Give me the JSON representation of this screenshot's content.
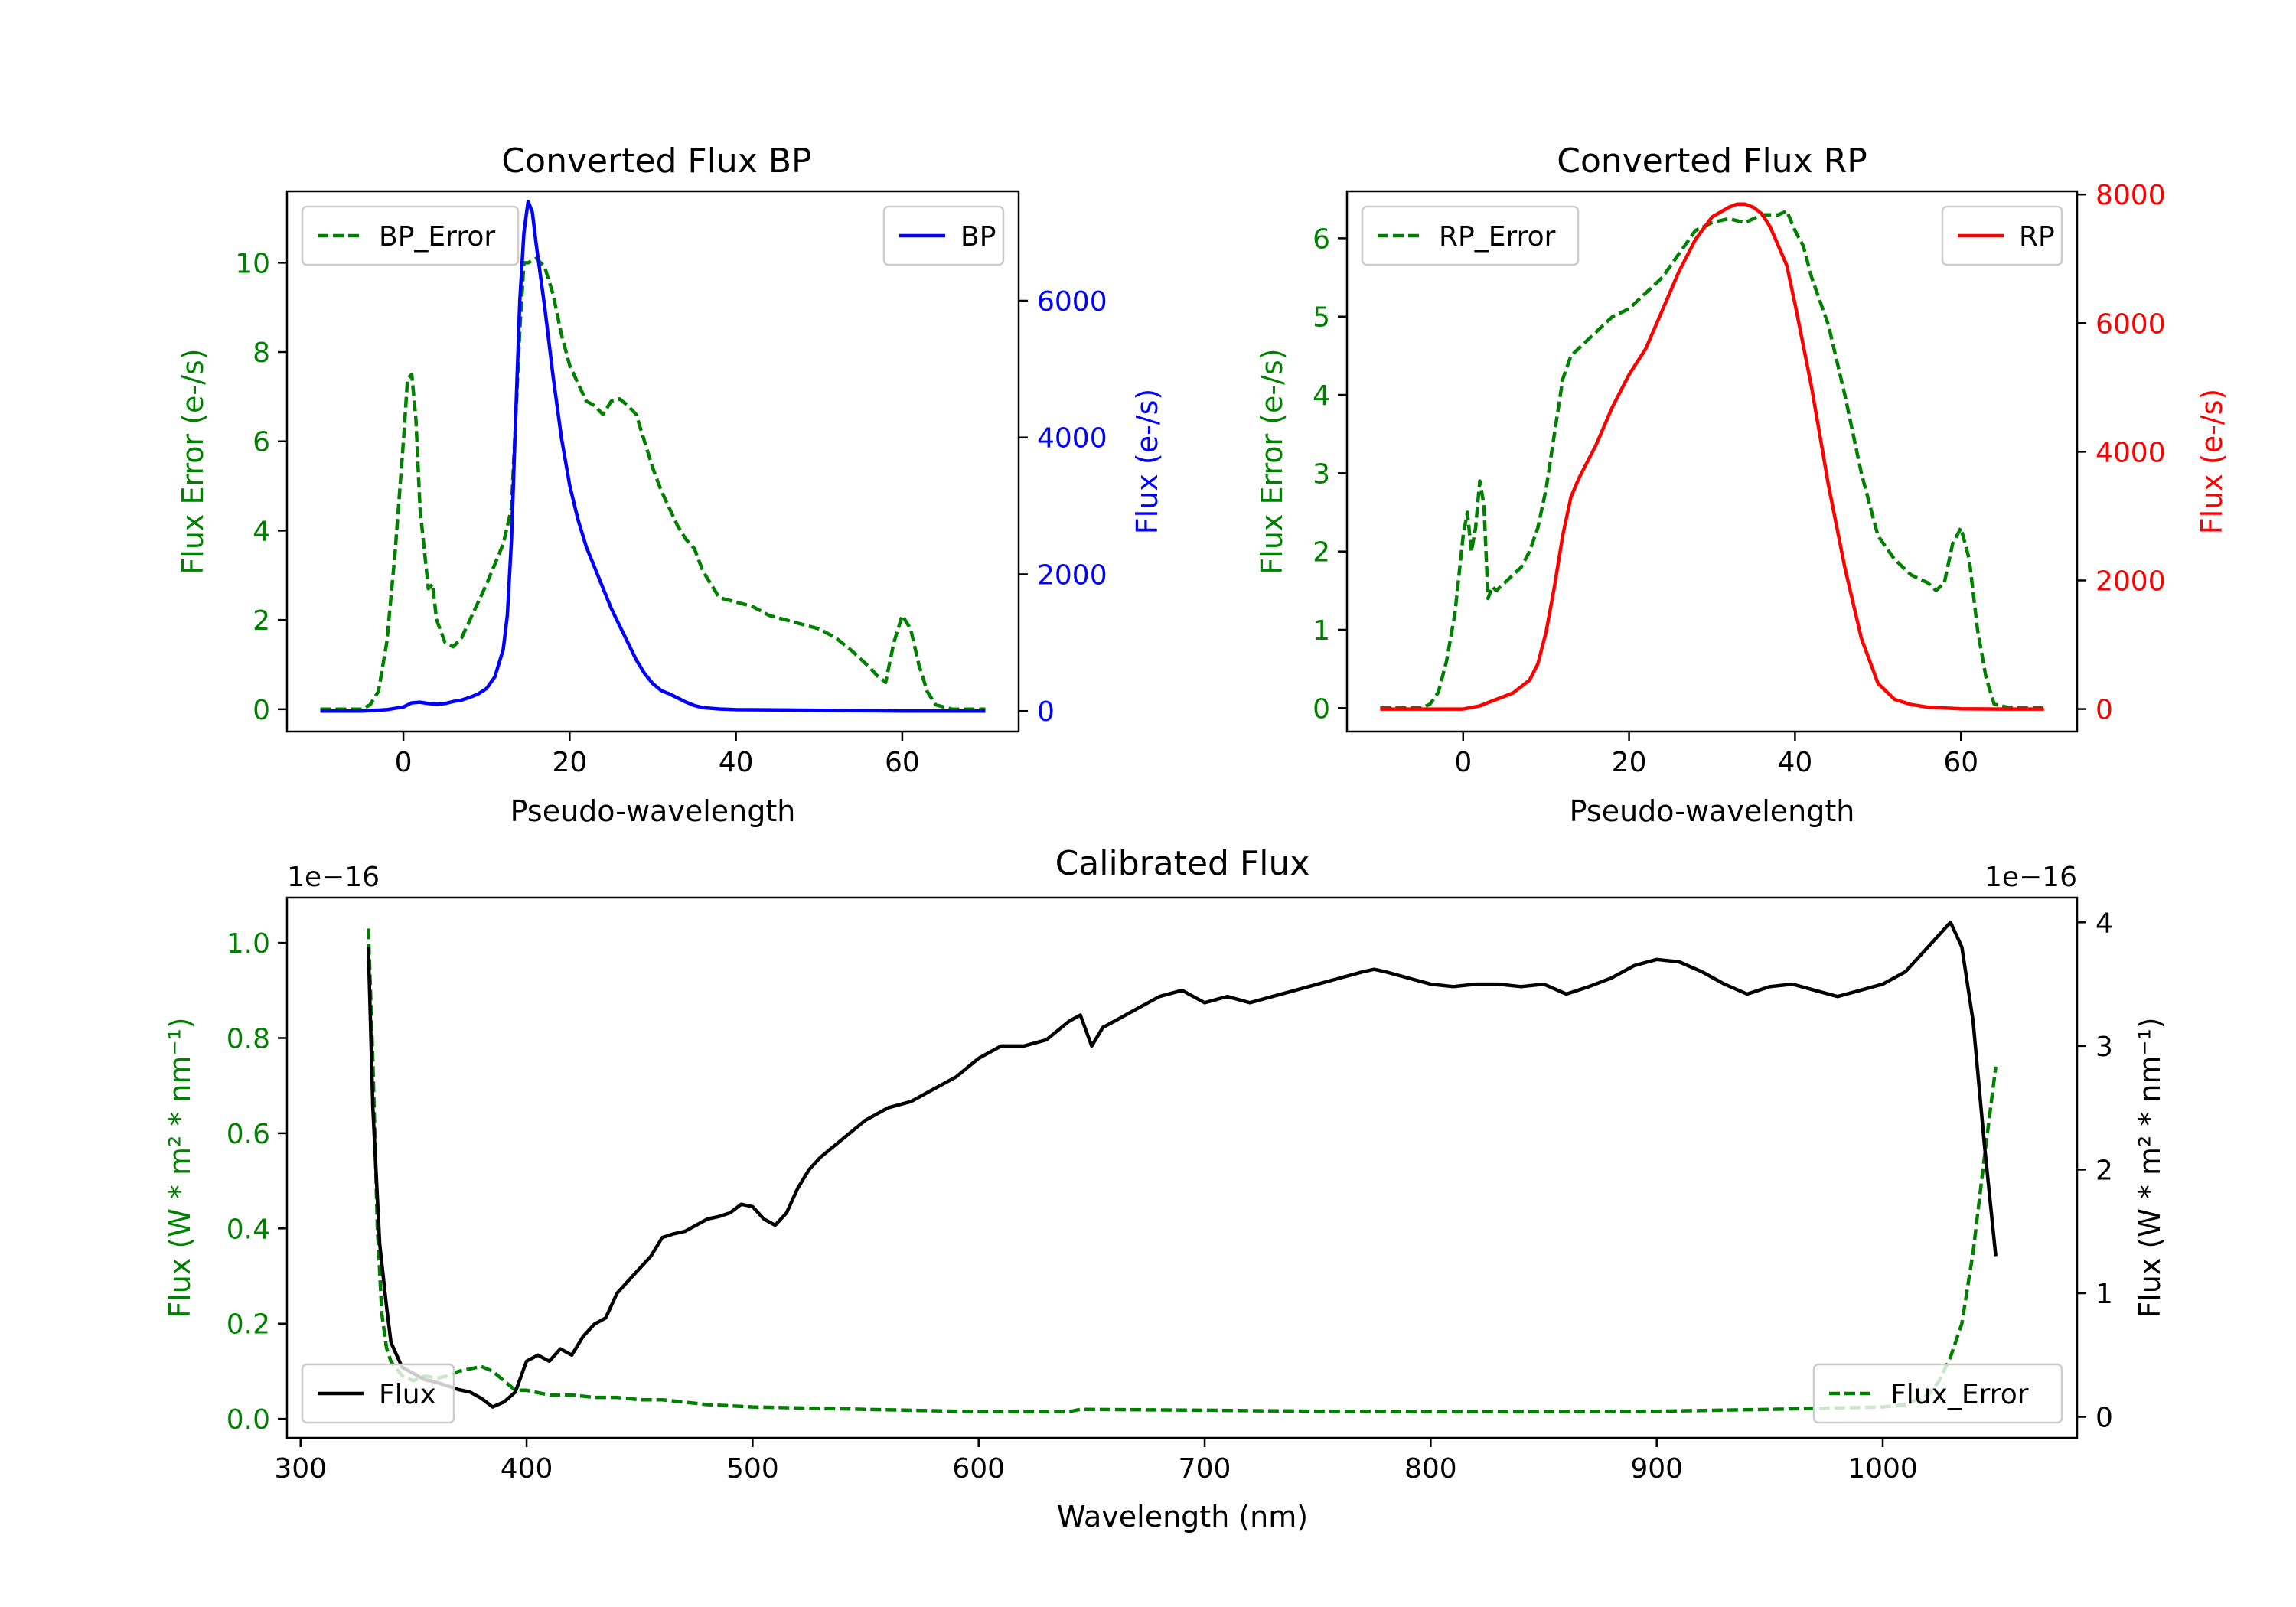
{
  "colors": {
    "green": "#008000",
    "blue": "#0000ff",
    "red": "#ff0000",
    "black": "#000000"
  },
  "chart_data": [
    {
      "id": "bp",
      "type": "line",
      "title": "Converted Flux BP",
      "xlabel": "Pseudo-wavelength",
      "ylabel_left": "Flux Error (e-/s)",
      "ylabel_right": "Flux (e-/s)",
      "xlim": [
        -14,
        74
      ],
      "ylim_left": [
        -0.5,
        11.6
      ],
      "ylim_right": [
        -300,
        7600
      ],
      "xticks": [
        0,
        20,
        40,
        60
      ],
      "yticks_left": [
        0,
        2,
        4,
        6,
        8,
        10
      ],
      "yticks_right": [
        0,
        2000,
        4000,
        6000
      ],
      "left_color": "#008000",
      "right_color": "#0000ff",
      "series": [
        {
          "name": "BP_Error",
          "axis": "left",
          "style": "dashed",
          "color": "#008000",
          "legend": "top-left",
          "x": [
            -10,
            -5,
            -4,
            -3,
            -2,
            -1,
            0,
            0.5,
            1,
            1.5,
            2,
            3,
            3.5,
            4,
            5,
            6,
            7,
            8,
            10,
            12,
            13,
            13.5,
            14,
            14.5,
            15,
            16,
            17,
            18,
            19,
            20,
            21,
            22,
            23,
            24,
            25,
            26,
            27,
            28,
            29,
            30,
            31,
            32,
            33,
            34,
            35,
            36,
            38,
            40,
            42,
            44,
            46,
            48,
            50,
            52,
            54,
            56,
            57,
            58,
            59,
            60,
            61,
            62,
            63,
            64,
            66,
            68,
            70
          ],
          "values": [
            0.0,
            0.0,
            0.1,
            0.4,
            1.5,
            3.5,
            6.0,
            7.4,
            7.5,
            6.5,
            4.5,
            2.7,
            2.8,
            2.0,
            1.5,
            1.4,
            1.6,
            2.0,
            2.8,
            3.7,
            4.5,
            6.5,
            8.5,
            10.0,
            10.0,
            10.1,
            9.9,
            9.3,
            8.4,
            7.7,
            7.3,
            6.9,
            6.8,
            6.6,
            6.9,
            6.95,
            6.8,
            6.6,
            6.0,
            5.4,
            4.9,
            4.5,
            4.1,
            3.8,
            3.6,
            3.1,
            2.5,
            2.4,
            2.3,
            2.1,
            2.0,
            1.9,
            1.8,
            1.6,
            1.3,
            0.95,
            0.75,
            0.6,
            1.5,
            2.1,
            1.8,
            1.0,
            0.4,
            0.1,
            0.0,
            0.0,
            0.0
          ]
        },
        {
          "name": "BP",
          "axis": "right",
          "style": "solid",
          "color": "#0000ff",
          "legend": "top-right",
          "x": [
            -10,
            -5,
            -2,
            0,
            1,
            2,
            3,
            4,
            5,
            6,
            7,
            8,
            9,
            10,
            11,
            12,
            12.5,
            13,
            13.5,
            14,
            14.5,
            15,
            15.5,
            16,
            17,
            18,
            19,
            20,
            21,
            22,
            23,
            24,
            25,
            26,
            27,
            28,
            29,
            30,
            31,
            32,
            33,
            34,
            35,
            36,
            38,
            40,
            45,
            50,
            55,
            60,
            65,
            70
          ],
          "values": [
            0,
            0,
            20,
            60,
            120,
            130,
            110,
            100,
            110,
            140,
            160,
            200,
            250,
            330,
            500,
            900,
            1400,
            2500,
            4300,
            6000,
            7000,
            7450,
            7300,
            6800,
            5900,
            4900,
            4000,
            3300,
            2800,
            2400,
            2100,
            1800,
            1500,
            1250,
            1000,
            750,
            550,
            400,
            300,
            250,
            190,
            130,
            80,
            50,
            30,
            20,
            15,
            10,
            5,
            0,
            0,
            0
          ]
        }
      ]
    },
    {
      "id": "rp",
      "type": "line",
      "title": "Converted Flux RP",
      "xlabel": "Pseudo-wavelength",
      "ylabel_left": "Flux Error (e-/s)",
      "ylabel_right": "Flux (e-/s)",
      "xlim": [
        -14,
        74
      ],
      "ylim_left": [
        -0.3,
        6.6
      ],
      "ylim_right": [
        -350,
        8050
      ],
      "xticks": [
        0,
        20,
        40,
        60
      ],
      "yticks_left": [
        0,
        1,
        2,
        3,
        4,
        5,
        6
      ],
      "yticks_right": [
        0,
        2000,
        4000,
        6000,
        8000
      ],
      "left_color": "#008000",
      "right_color": "#ff0000",
      "series": [
        {
          "name": "RP_Error",
          "axis": "left",
          "style": "dashed",
          "color": "#008000",
          "legend": "top-left",
          "x": [
            -10,
            -5,
            -4,
            -3,
            -2,
            -1,
            0,
            0.5,
            1,
            1.5,
            2,
            2.5,
            3,
            3.5,
            4,
            5,
            6,
            7,
            8,
            9,
            10,
            11,
            12,
            13,
            14,
            16,
            18,
            20,
            22,
            24,
            26,
            28,
            30,
            32,
            34,
            36,
            38,
            39,
            40,
            41,
            42,
            44,
            46,
            48,
            50,
            52,
            54,
            56,
            57,
            58,
            59,
            60,
            61,
            62,
            63,
            64,
            66,
            70
          ],
          "values": [
            0.0,
            0.0,
            0.05,
            0.2,
            0.6,
            1.2,
            2.2,
            2.5,
            2.0,
            2.3,
            2.9,
            2.6,
            1.4,
            1.55,
            1.5,
            1.6,
            1.7,
            1.8,
            2.0,
            2.3,
            2.8,
            3.5,
            4.2,
            4.5,
            4.6,
            4.8,
            5.0,
            5.1,
            5.3,
            5.5,
            5.8,
            6.1,
            6.2,
            6.25,
            6.2,
            6.3,
            6.3,
            6.35,
            6.1,
            5.9,
            5.5,
            4.9,
            4.0,
            3.0,
            2.2,
            1.9,
            1.7,
            1.6,
            1.5,
            1.6,
            2.1,
            2.3,
            1.9,
            1.0,
            0.4,
            0.05,
            0.0,
            0.0
          ]
        },
        {
          "name": "RP",
          "axis": "right",
          "style": "solid",
          "color": "#ff0000",
          "legend": "top-right",
          "x": [
            -10,
            -5,
            0,
            2,
            4,
            6,
            8,
            9,
            10,
            11,
            12,
            13,
            14,
            16,
            18,
            20,
            22,
            24,
            26,
            28,
            30,
            32,
            33,
            34,
            35,
            36,
            37,
            38,
            39,
            40,
            42,
            44,
            46,
            48,
            50,
            52,
            54,
            56,
            60,
            65,
            70
          ],
          "values": [
            0,
            0,
            0,
            50,
            150,
            250,
            450,
            700,
            1200,
            1900,
            2700,
            3300,
            3600,
            4100,
            4700,
            5200,
            5600,
            6200,
            6800,
            7300,
            7650,
            7800,
            7850,
            7850,
            7800,
            7700,
            7500,
            7200,
            6900,
            6300,
            5000,
            3500,
            2200,
            1100,
            400,
            150,
            70,
            30,
            5,
            0,
            0
          ]
        }
      ]
    },
    {
      "id": "calibrated",
      "type": "line",
      "title": "Calibrated Flux",
      "xlabel": "Wavelength (nm)",
      "ylabel_left": "Flux (W * m² * nm⁻¹)",
      "ylabel_right": "Flux (W * m² * nm⁻¹)",
      "offset_left": "1e−16",
      "offset_right": "1e−16",
      "xlim": [
        294,
        1086
      ],
      "ylim_left": [
        -0.04,
        1.095
      ],
      "ylim_right": [
        -0.17,
        4.2
      ],
      "xticks": [
        300,
        400,
        500,
        600,
        700,
        800,
        900,
        1000
      ],
      "yticks_left": [
        0.0,
        0.2,
        0.4,
        0.6,
        0.8,
        1.0
      ],
      "yticks_right": [
        0,
        1,
        2,
        3,
        4
      ],
      "left_color": "#008000",
      "right_color": "#000000",
      "series": [
        {
          "name": "Flux_Error",
          "axis": "left",
          "style": "dashed",
          "color": "#008000",
          "legend": "bottom-right",
          "x": [
            330,
            332,
            334,
            336,
            338,
            340,
            345,
            350,
            355,
            360,
            365,
            370,
            375,
            380,
            385,
            390,
            395,
            400,
            410,
            420,
            430,
            440,
            450,
            460,
            470,
            480,
            500,
            550,
            600,
            640,
            645,
            700,
            750,
            800,
            850,
            900,
            950,
            1000,
            1010,
            1020,
            1025,
            1030,
            1035,
            1040,
            1045,
            1050
          ],
          "values": [
            1.03,
            0.75,
            0.4,
            0.22,
            0.15,
            0.12,
            0.09,
            0.08,
            0.09,
            0.085,
            0.09,
            0.1,
            0.105,
            0.11,
            0.1,
            0.08,
            0.06,
            0.06,
            0.05,
            0.05,
            0.045,
            0.045,
            0.04,
            0.04,
            0.035,
            0.03,
            0.025,
            0.02,
            0.015,
            0.015,
            0.02,
            0.018,
            0.016,
            0.015,
            0.015,
            0.016,
            0.02,
            0.025,
            0.03,
            0.05,
            0.08,
            0.13,
            0.2,
            0.35,
            0.55,
            0.74
          ]
        },
        {
          "name": "Flux",
          "axis": "right",
          "style": "solid",
          "color": "#000000",
          "legend": "bottom-left",
          "x": [
            330,
            332,
            335,
            338,
            340,
            345,
            350,
            355,
            360,
            365,
            370,
            375,
            380,
            385,
            390,
            395,
            400,
            405,
            410,
            415,
            420,
            425,
            430,
            435,
            440,
            445,
            450,
            455,
            460,
            465,
            470,
            475,
            480,
            485,
            490,
            495,
            500,
            505,
            510,
            515,
            520,
            525,
            530,
            540,
            550,
            560,
            570,
            580,
            590,
            600,
            610,
            620,
            630,
            640,
            645,
            650,
            655,
            660,
            665,
            670,
            675,
            680,
            690,
            700,
            710,
            720,
            730,
            740,
            750,
            760,
            770,
            775,
            780,
            790,
            800,
            810,
            820,
            830,
            840,
            850,
            860,
            870,
            880,
            890,
            900,
            910,
            920,
            930,
            940,
            950,
            960,
            970,
            980,
            990,
            1000,
            1010,
            1020,
            1025,
            1030,
            1035,
            1040,
            1045,
            1050
          ],
          "values": [
            3.8,
            2.5,
            1.4,
            0.9,
            0.6,
            0.4,
            0.35,
            0.3,
            0.28,
            0.25,
            0.22,
            0.2,
            0.15,
            0.08,
            0.12,
            0.2,
            0.45,
            0.5,
            0.45,
            0.55,
            0.5,
            0.65,
            0.75,
            0.8,
            1.0,
            1.1,
            1.2,
            1.3,
            1.45,
            1.48,
            1.5,
            1.55,
            1.6,
            1.62,
            1.65,
            1.72,
            1.7,
            1.6,
            1.55,
            1.65,
            1.85,
            2.0,
            2.1,
            2.25,
            2.4,
            2.5,
            2.55,
            2.65,
            2.75,
            2.9,
            3.0,
            3.0,
            3.05,
            3.2,
            3.25,
            3.0,
            3.15,
            3.2,
            3.25,
            3.3,
            3.35,
            3.4,
            3.45,
            3.35,
            3.4,
            3.35,
            3.4,
            3.45,
            3.5,
            3.55,
            3.6,
            3.62,
            3.6,
            3.55,
            3.5,
            3.48,
            3.5,
            3.5,
            3.48,
            3.5,
            3.42,
            3.48,
            3.55,
            3.65,
            3.7,
            3.68,
            3.6,
            3.5,
            3.42,
            3.48,
            3.5,
            3.45,
            3.4,
            3.45,
            3.5,
            3.6,
            3.8,
            3.9,
            4.0,
            3.8,
            3.2,
            2.2,
            1.3
          ]
        }
      ]
    }
  ]
}
